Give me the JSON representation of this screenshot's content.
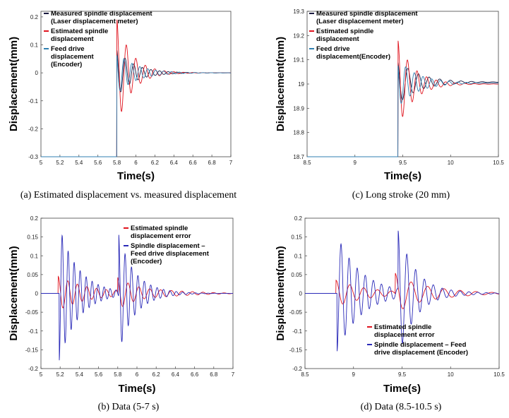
{
  "chart_data": [
    {
      "id": "a",
      "type": "line",
      "caption": "(a) Estimated displacement vs. measured displacement",
      "xlabel": "Time(s)",
      "ylabel": "Displacement(mm)",
      "xlim": [
        5,
        7
      ],
      "ylim": [
        -0.3,
        0.22
      ],
      "xticks": [
        "5",
        "5.2",
        "5.4",
        "5.6",
        "5.8",
        "6",
        "6.2",
        "6.4",
        "6.6",
        "6.8",
        "7"
      ],
      "yticks": [
        "-0.3",
        "-0.2",
        "-0.1",
        "0",
        "0.1",
        "0.2"
      ],
      "legend": [
        "Measured spindle displacement (Laser displacement meter)",
        "Estimated spindle displacement",
        "Feed drive displacement (Encoder)"
      ],
      "legend_lines": [
        [
          "Measured spindle displacement",
          "(Laser displacement meter)"
        ],
        [
          "Estimated spindle",
          "displacement"
        ],
        [
          "Feed drive",
          "displacement",
          "(Encoder)"
        ]
      ],
      "series": [
        {
          "name": "Measured spindle displacement (Laser displacement meter)",
          "color": "#1a1a40",
          "offset": 0,
          "t0": 5.8,
          "step_from": -0.3,
          "amp": 0.085,
          "freq": 11,
          "decay": 5.5,
          "phase": 0.3,
          "noise": 0
        },
        {
          "name": "Estimated spindle displacement",
          "color": "#e0141e",
          "offset": 0,
          "t0": 5.8,
          "step_from": -0.3,
          "amp": 0.19,
          "freq": 10,
          "decay": 6.5,
          "phase": 0.0,
          "noise": 0
        },
        {
          "name": "Feed drive displacement (Encoder)",
          "color": "#2f7fb0",
          "offset": 0,
          "t0": 5.8,
          "step_from": -0.3,
          "amp": 0.075,
          "freq": 12,
          "decay": 5,
          "phase": 0.6,
          "noise": 0
        }
      ]
    },
    {
      "id": "c",
      "type": "line",
      "caption": "(c) Long stroke (20 mm)",
      "xlabel": "Time(s)",
      "ylabel": "Displacement(mm)",
      "xlim": [
        8.5,
        10.5
      ],
      "ylim": [
        18.7,
        19.3
      ],
      "xticks": [
        "8.5",
        "9",
        "9.5",
        "10",
        "10.5"
      ],
      "yticks": [
        "18.7",
        "18.8",
        "18.9",
        "19",
        "19.1",
        "19.2",
        "19.3"
      ],
      "legend": [
        "Measured spindle displacement (Laser displacement meter)",
        "Estimated spindle displacement",
        "Feed drive displacement(Encoder)"
      ],
      "legend_lines": [
        [
          "Measured spindle displacement",
          "(Laser displacement meter)"
        ],
        [
          "Estimated spindle",
          "displacement"
        ],
        [
          "Feed drive",
          "displacement(Encoder)"
        ]
      ],
      "series": [
        {
          "name": "Measured spindle displacement (Laser displacement meter)",
          "color": "#1a1a40",
          "offset": 19.008,
          "t0": 9.45,
          "step_from": 18.7,
          "amp": 0.09,
          "freq": 9,
          "decay": 4.5,
          "phase": 0.4,
          "noise": 0
        },
        {
          "name": "Estimated spindle displacement",
          "color": "#e0141e",
          "offset": 19.0,
          "t0": 9.45,
          "step_from": 18.7,
          "amp": 0.18,
          "freq": 10,
          "decay": 6,
          "phase": 0.0,
          "noise": 0
        },
        {
          "name": "Feed drive displacement(Encoder)",
          "color": "#2f7fb0",
          "offset": 19.004,
          "t0": 9.45,
          "step_from": 18.7,
          "amp": 0.1,
          "freq": 11,
          "decay": 5,
          "phase": 0.7,
          "noise": 0
        }
      ]
    },
    {
      "id": "b",
      "type": "line",
      "caption": "(b) Data (5-7 s)",
      "xlabel": "Time(s)",
      "ylabel": "Displacement(mm)",
      "xlim": [
        5,
        7
      ],
      "ylim": [
        -0.2,
        0.2
      ],
      "xticks": [
        "5",
        "5.2",
        "5.4",
        "5.6",
        "5.8",
        "6",
        "6.2",
        "6.4",
        "6.6",
        "6.8",
        "7"
      ],
      "yticks": [
        "-0.2",
        "-0.15",
        "-0.1",
        "-0.05",
        "0",
        "0.05",
        "0.1",
        "0.15",
        "0.2"
      ],
      "legend": [
        "Estimated spindle displacement error",
        "Spindle displacement – Feed drive displacement (Encoder)"
      ],
      "legend_lines": [
        [
          "Estimated spindle",
          "displacement error"
        ],
        [
          "Spindle displacement –",
          "Feed drive displacement",
          "(Encoder)"
        ]
      ],
      "series": [
        {
          "name": "Estimated spindle displacement error",
          "color": "#e0141e",
          "offset": 0,
          "events": [
            {
              "t0": 5.18,
              "amp": 0.045,
              "freq": 10,
              "decay": 3
            },
            {
              "t0": 5.8,
              "amp": 0.04,
              "freq": 9,
              "decay": 3
            }
          ]
        },
        {
          "name": "Spindle displacement – Feed drive displacement (Encoder)",
          "color": "#2a2ab8",
          "offset": 0,
          "events": [
            {
              "t0": 5.19,
              "amp": 0.18,
              "freq": 16,
              "decay": 5
            },
            {
              "t0": 5.81,
              "amp": 0.165,
              "freq": 15,
              "decay": 6
            }
          ]
        }
      ]
    },
    {
      "id": "d",
      "type": "line",
      "caption": "(d) Data (8.5-10.5 s)",
      "xlabel": "Time(s)",
      "ylabel": "Displacement(mm)",
      "xlim": [
        8.5,
        10.5
      ],
      "ylim": [
        -0.2,
        0.2
      ],
      "xticks": [
        "8.5",
        "9",
        "9.5",
        "10",
        "10.5"
      ],
      "yticks": [
        "-0.2",
        "-0.15",
        "-0.1",
        "-0.05",
        "0",
        "0.05",
        "0.1",
        "0.15",
        "0.2"
      ],
      "legend": [
        "Estimated spindle displacement error",
        "Spindle displacement – Feed drive displacement (Encoder)"
      ],
      "legend_lines": [
        [
          "Estimated spindle",
          "displacement error"
        ],
        [
          "Spindle displacement – Feed",
          "drive displacement (Encoder)"
        ]
      ],
      "series": [
        {
          "name": "Estimated spindle displacement error",
          "color": "#e0141e",
          "offset": 0,
          "events": [
            {
              "t0": 8.82,
              "amp": 0.035,
              "freq": 7,
              "decay": 3
            },
            {
              "t0": 9.43,
              "amp": 0.055,
              "freq": 6,
              "decay": 3
            }
          ]
        },
        {
          "name": "Spindle displacement – Feed drive displacement (Encoder)",
          "color": "#2a2ab8",
          "offset": 0,
          "events": [
            {
              "t0": 8.83,
              "amp": 0.155,
              "freq": 12,
              "decay": 4
            },
            {
              "t0": 9.46,
              "amp": 0.155,
              "freq": 11,
              "decay": 5
            }
          ]
        }
      ]
    }
  ]
}
